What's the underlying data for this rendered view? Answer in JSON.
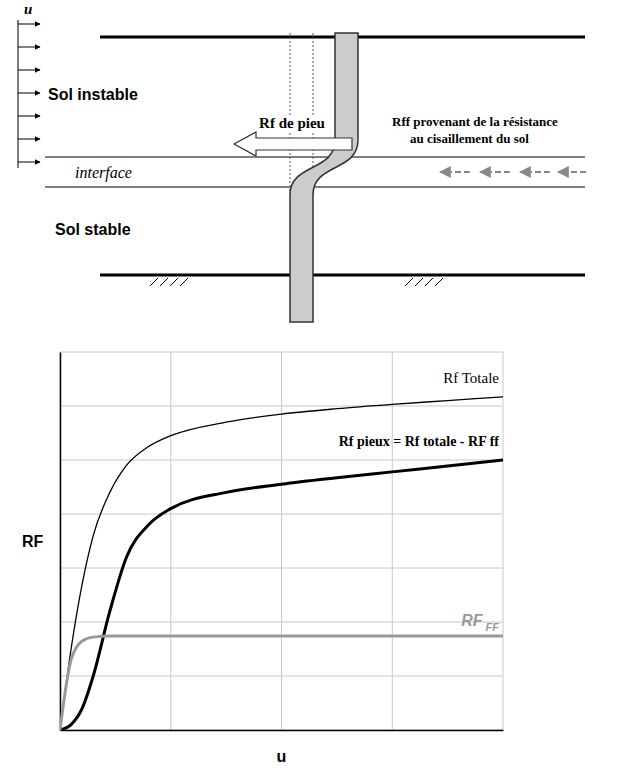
{
  "diagram": {
    "velocity_label": "u",
    "unstable_soil": "Sol instable",
    "interface": "interface",
    "stable_soil": "Sol stable",
    "pile_force": "Rf de pieu",
    "soil_force": [
      "Rff provenant de la résistance",
      "au cisaillement du sol"
    ]
  },
  "chart_data": {
    "type": "line",
    "x_label": "u",
    "y_label": "RF",
    "x": [
      0,
      0.1,
      0.2,
      0.3,
      0.45,
      0.6,
      0.8,
      1.0,
      1.5,
      2,
      2.5,
      3,
      3.5,
      4
    ],
    "series": [
      {
        "name": "Rf Totale",
        "color": "#000000",
        "values": [
          0,
          1.5,
          2.7,
          3.6,
          4.4,
          4.9,
          5.25,
          5.45,
          5.7,
          5.85,
          5.95,
          6.03,
          6.1,
          6.17
        ]
      },
      {
        "name": "Rf pieux = Rf totale - RF ff",
        "color": "#000000",
        "values": [
          0,
          0.1,
          0.4,
          1.0,
          2.2,
          3.2,
          3.8,
          4.1,
          4.4,
          4.55,
          4.67,
          4.78,
          4.89,
          5.0
        ]
      },
      {
        "name": "RF FF",
        "color": "#999999",
        "values": [
          0,
          1.3,
          1.65,
          1.72,
          1.74,
          1.74,
          1.74,
          1.74,
          1.74,
          1.74,
          1.74,
          1.74,
          1.74,
          1.74
        ]
      }
    ],
    "xlim": [
      0,
      4
    ],
    "ylim": [
      0,
      7
    ],
    "xticks": [
      0,
      1,
      2,
      3,
      4
    ],
    "yticks": [
      0,
      1,
      2,
      3,
      4,
      5,
      6,
      7
    ],
    "grid": true,
    "tick_labels": false
  }
}
